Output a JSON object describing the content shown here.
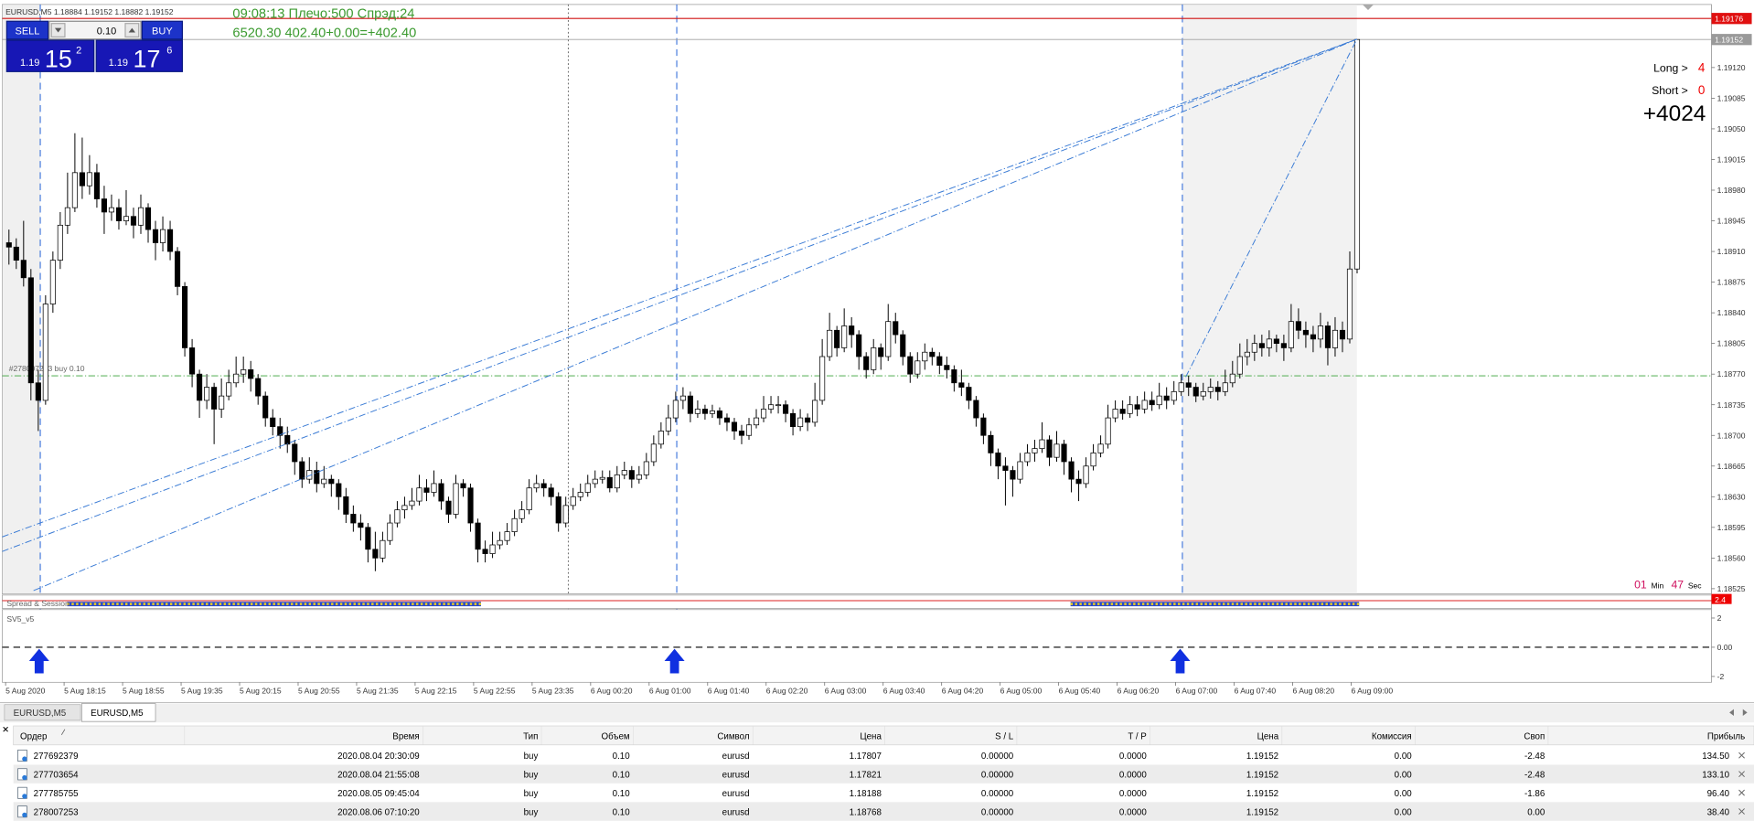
{
  "window": {
    "symbol_info": "EURUSD,M5  1.18884 1.19152 1.18882 1.19152"
  },
  "trade_panel": {
    "sell": "SELL",
    "buy": "BUY",
    "lot": "0.10",
    "bid": {
      "prefix": "1.19",
      "big": "15",
      "small": "2"
    },
    "ask": {
      "prefix": "1.19",
      "big": "17",
      "small": "6"
    }
  },
  "info": {
    "line1": "09:08:13 Плечо:500 Спрэд:24",
    "line2": "6520.30   402.40+0.00=+402.40"
  },
  "positions_panel": {
    "long_label": "Long >",
    "long": "4",
    "short_label": "Short >",
    "short": "0",
    "total": "+4024"
  },
  "timer": {
    "min": "01",
    "min_label": "Min",
    "sec": "47",
    "sec_label": "Sec"
  },
  "price_chart": {
    "ylim": [
      1.18519,
      1.19192
    ],
    "yticks": [
      {
        "value": 1.1912,
        "label": "1.19120"
      },
      1.19085,
      {
        "value": 1.1905,
        "label": "1.19050"
      },
      1.19015,
      {
        "value": 1.1898,
        "label": "1.18980"
      },
      1.18945,
      {
        "value": 1.1891,
        "label": "1.18910"
      },
      1.18875,
      {
        "value": 1.1884,
        "label": "1.18840"
      },
      1.18805,
      {
        "value": 1.1877,
        "label": "1.18770"
      },
      1.18735,
      {
        "value": 1.187,
        "label": "1.18700"
      },
      1.18665,
      {
        "value": 1.1863,
        "label": "1.18630"
      },
      1.18595,
      {
        "value": 1.1856,
        "label": "1.18560"
      },
      1.18525
    ],
    "bull_color": "#ffffff",
    "bear_color": "#000000",
    "levels": {
      "ask": 1.19176,
      "bid": 1.19152,
      "order": {
        "value": 1.18768,
        "label": "#278007253 buy 0.10"
      }
    },
    "candles": [
      [
        1.1892,
        1.18935,
        1.18895,
        1.18915
      ],
      [
        1.18915,
        1.18925,
        1.1889,
        1.189
      ],
      [
        1.189,
        1.18945,
        1.1887,
        1.1888
      ],
      [
        1.1888,
        1.1889,
        1.1874,
        1.1876
      ],
      [
        1.1876,
        1.18775,
        1.18705,
        1.1874
      ],
      [
        1.1874,
        1.1886,
        1.18735,
        1.1885
      ],
      [
        1.1885,
        1.1891,
        1.1884,
        1.189
      ],
      [
        1.189,
        1.18955,
        1.1889,
        1.1894
      ],
      [
        1.1894,
        1.19,
        1.1893,
        1.1896
      ],
      [
        1.1896,
        1.19045,
        1.18955,
        1.19
      ],
      [
        1.19,
        1.1904,
        1.1897,
        1.18985
      ],
      [
        1.18985,
        1.1902,
        1.18975,
        1.19
      ],
      [
        1.19,
        1.1901,
        1.1896,
        1.1897
      ],
      [
        1.1897,
        1.18985,
        1.1893,
        1.18955
      ],
      [
        1.18955,
        1.18975,
        1.18945,
        1.1896
      ],
      [
        1.1896,
        1.1897,
        1.18935,
        1.18945
      ],
      [
        1.18945,
        1.1898,
        1.1894,
        1.1895
      ],
      [
        1.1895,
        1.1896,
        1.18925,
        1.1894
      ],
      [
        1.1894,
        1.18975,
        1.1893,
        1.1896
      ],
      [
        1.1896,
        1.18965,
        1.1892,
        1.18935
      ],
      [
        1.18935,
        1.18945,
        1.189,
        1.1892
      ],
      [
        1.1892,
        1.1895,
        1.1891,
        1.18935
      ],
      [
        1.18935,
        1.18945,
        1.189,
        1.1891
      ],
      [
        1.1891,
        1.18915,
        1.1886,
        1.1887
      ],
      [
        1.1887,
        1.18875,
        1.1879,
        1.188
      ],
      [
        1.188,
        1.1881,
        1.18755,
        1.1877
      ],
      [
        1.1877,
        1.18775,
        1.1872,
        1.1874
      ],
      [
        1.1874,
        1.1877,
        1.1873,
        1.18755
      ],
      [
        1.18755,
        1.1876,
        1.1869,
        1.1873
      ],
      [
        1.1873,
        1.18765,
        1.1872,
        1.18745
      ],
      [
        1.18745,
        1.18775,
        1.1874,
        1.1876
      ],
      [
        1.1876,
        1.1879,
        1.18755,
        1.1877
      ],
      [
        1.1877,
        1.1879,
        1.1876,
        1.18775
      ],
      [
        1.18775,
        1.18785,
        1.1875,
        1.18765
      ],
      [
        1.18765,
        1.1877,
        1.18735,
        1.18745
      ],
      [
        1.18745,
        1.1875,
        1.1871,
        1.1872
      ],
      [
        1.1872,
        1.1873,
        1.187,
        1.1871
      ],
      [
        1.1871,
        1.1872,
        1.18685,
        1.187
      ],
      [
        1.187,
        1.1871,
        1.1868,
        1.1869
      ],
      [
        1.1869,
        1.18695,
        1.18655,
        1.1867
      ],
      [
        1.1867,
        1.18675,
        1.1864,
        1.1865
      ],
      [
        1.1865,
        1.18675,
        1.18645,
        1.1866
      ],
      [
        1.1866,
        1.1867,
        1.18635,
        1.18645
      ],
      [
        1.18645,
        1.18665,
        1.1864,
        1.1865
      ],
      [
        1.1865,
        1.18655,
        1.1863,
        1.18645
      ],
      [
        1.18645,
        1.1865,
        1.18615,
        1.1863
      ],
      [
        1.1863,
        1.1864,
        1.186,
        1.1861
      ],
      [
        1.1861,
        1.1862,
        1.1859,
        1.186
      ],
      [
        1.186,
        1.1861,
        1.1858,
        1.18595
      ],
      [
        1.18595,
        1.186,
        1.18555,
        1.1857
      ],
      [
        1.1857,
        1.1859,
        1.18545,
        1.1856
      ],
      [
        1.1856,
        1.1859,
        1.18555,
        1.1858
      ],
      [
        1.1858,
        1.1861,
        1.18575,
        1.186
      ],
      [
        1.186,
        1.18625,
        1.18595,
        1.18615
      ],
      [
        1.18615,
        1.1863,
        1.18605,
        1.1862
      ],
      [
        1.1862,
        1.1864,
        1.18615,
        1.18625
      ],
      [
        1.18625,
        1.18655,
        1.1862,
        1.1864
      ],
      [
        1.1864,
        1.1865,
        1.18625,
        1.18635
      ],
      [
        1.18635,
        1.1866,
        1.1863,
        1.18645
      ],
      [
        1.18645,
        1.1865,
        1.18615,
        1.18625
      ],
      [
        1.18625,
        1.1863,
        1.186,
        1.1861
      ],
      [
        1.1861,
        1.18655,
        1.18605,
        1.18645
      ],
      [
        1.18645,
        1.1865,
        1.1863,
        1.1864
      ],
      [
        1.1864,
        1.18645,
        1.1859,
        1.186
      ],
      [
        1.186,
        1.18605,
        1.18555,
        1.1857
      ],
      [
        1.1857,
        1.1858,
        1.18555,
        1.18565
      ],
      [
        1.18565,
        1.1859,
        1.1856,
        1.18575
      ],
      [
        1.18575,
        1.1859,
        1.1857,
        1.1858
      ],
      [
        1.1858,
        1.186,
        1.18575,
        1.1859
      ],
      [
        1.1859,
        1.18615,
        1.18585,
        1.18605
      ],
      [
        1.18605,
        1.18625,
        1.186,
        1.18615
      ],
      [
        1.18615,
        1.1865,
        1.1861,
        1.1864
      ],
      [
        1.1864,
        1.18655,
        1.18635,
        1.18645
      ],
      [
        1.18645,
        1.1865,
        1.1863,
        1.1864
      ],
      [
        1.1864,
        1.18645,
        1.1862,
        1.1863
      ],
      [
        1.1863,
        1.18635,
        1.1859,
        1.186
      ],
      [
        1.186,
        1.1863,
        1.18595,
        1.1862
      ],
      [
        1.1862,
        1.1864,
        1.18615,
        1.1863
      ],
      [
        1.1863,
        1.18645,
        1.18625,
        1.18635
      ],
      [
        1.18635,
        1.18655,
        1.1863,
        1.18645
      ],
      [
        1.18645,
        1.1866,
        1.1864,
        1.1865
      ],
      [
        1.1865,
        1.1866,
        1.18645,
        1.18652
      ],
      [
        1.18652,
        1.1866,
        1.18635,
        1.1864
      ],
      [
        1.1864,
        1.18665,
        1.18635,
        1.18655
      ],
      [
        1.18655,
        1.1867,
        1.1865,
        1.1866
      ],
      [
        1.1866,
        1.18665,
        1.1864,
        1.1865
      ],
      [
        1.1865,
        1.18665,
        1.18645,
        1.18655
      ],
      [
        1.18655,
        1.1868,
        1.1865,
        1.1867
      ],
      [
        1.1867,
        1.187,
        1.18665,
        1.1869
      ],
      [
        1.1869,
        1.18715,
        1.18685,
        1.18705
      ],
      [
        1.18705,
        1.18735,
        1.187,
        1.1872
      ],
      [
        1.1872,
        1.1875,
        1.18715,
        1.1874
      ],
      [
        1.1874,
        1.18755,
        1.1873,
        1.18745
      ],
      [
        1.18745,
        1.1875,
        1.18715,
        1.18725
      ],
      [
        1.18725,
        1.1874,
        1.1872,
        1.1873
      ],
      [
        1.1873,
        1.18735,
        1.18718,
        1.18725
      ],
      [
        1.18725,
        1.18735,
        1.1872,
        1.18728
      ],
      [
        1.18728,
        1.18732,
        1.18712,
        1.1872
      ],
      [
        1.1872,
        1.18725,
        1.18705,
        1.18715
      ],
      [
        1.18715,
        1.1872,
        1.18695,
        1.18705
      ],
      [
        1.18705,
        1.18712,
        1.1869,
        1.187
      ],
      [
        1.187,
        1.1872,
        1.18695,
        1.18712
      ],
      [
        1.18712,
        1.1873,
        1.18708,
        1.1872
      ],
      [
        1.1872,
        1.18745,
        1.18715,
        1.1873
      ],
      [
        1.1873,
        1.18745,
        1.18725,
        1.18735
      ],
      [
        1.18735,
        1.18745,
        1.18725,
        1.18735
      ],
      [
        1.18735,
        1.1874,
        1.18715,
        1.18725
      ],
      [
        1.18725,
        1.1873,
        1.187,
        1.1871
      ],
      [
        1.1871,
        1.1873,
        1.18705,
        1.1872
      ],
      [
        1.1872,
        1.18725,
        1.18705,
        1.18715
      ],
      [
        1.18715,
        1.1876,
        1.1871,
        1.1874
      ],
      [
        1.1874,
        1.1881,
        1.18735,
        1.1879
      ],
      [
        1.1879,
        1.1884,
        1.18785,
        1.1882
      ],
      [
        1.1882,
        1.18825,
        1.1879,
        1.188
      ],
      [
        1.188,
        1.18845,
        1.18795,
        1.18825
      ],
      [
        1.18825,
        1.18835,
        1.188,
        1.18815
      ],
      [
        1.18815,
        1.1882,
        1.18775,
        1.1879
      ],
      [
        1.1879,
        1.18795,
        1.18765,
        1.18775
      ],
      [
        1.18775,
        1.1881,
        1.1877,
        1.188
      ],
      [
        1.188,
        1.18805,
        1.18775,
        1.1879
      ],
      [
        1.1879,
        1.1885,
        1.18785,
        1.1883
      ],
      [
        1.1883,
        1.1884,
        1.18805,
        1.18815
      ],
      [
        1.18815,
        1.1882,
        1.1878,
        1.1879
      ],
      [
        1.1879,
        1.18795,
        1.1876,
        1.1877
      ],
      [
        1.1877,
        1.18795,
        1.18765,
        1.18785
      ],
      [
        1.18785,
        1.18805,
        1.18775,
        1.18795
      ],
      [
        1.18795,
        1.188,
        1.1878,
        1.1879
      ],
      [
        1.1879,
        1.18795,
        1.1877,
        1.1878
      ],
      [
        1.1878,
        1.1879,
        1.18765,
        1.18775
      ],
      [
        1.18775,
        1.1878,
        1.1875,
        1.1876
      ],
      [
        1.1876,
        1.18775,
        1.18745,
        1.18755
      ],
      [
        1.18755,
        1.1876,
        1.1873,
        1.1874
      ],
      [
        1.1874,
        1.18745,
        1.1871,
        1.1872
      ],
      [
        1.1872,
        1.18725,
        1.1869,
        1.187
      ],
      [
        1.187,
        1.18705,
        1.18665,
        1.1868
      ],
      [
        1.1868,
        1.18685,
        1.1865,
        1.18665
      ],
      [
        1.18665,
        1.18675,
        1.1862,
        1.1866
      ],
      [
        1.1866,
        1.18665,
        1.1863,
        1.1865
      ],
      [
        1.1865,
        1.1868,
        1.18645,
        1.1867
      ],
      [
        1.1867,
        1.1869,
        1.18665,
        1.1868
      ],
      [
        1.1868,
        1.18695,
        1.1867,
        1.18685
      ],
      [
        1.18685,
        1.18715,
        1.1868,
        1.18695
      ],
      [
        1.18695,
        1.187,
        1.18665,
        1.18675
      ],
      [
        1.18675,
        1.18705,
        1.1867,
        1.1869
      ],
      [
        1.1869,
        1.18695,
        1.18655,
        1.1867
      ],
      [
        1.1867,
        1.18675,
        1.18635,
        1.1865
      ],
      [
        1.1865,
        1.1866,
        1.18625,
        1.18645
      ],
      [
        1.18645,
        1.18675,
        1.1864,
        1.18665
      ],
      [
        1.18665,
        1.1869,
        1.1866,
        1.1868
      ],
      [
        1.1868,
        1.187,
        1.18675,
        1.1869
      ],
      [
        1.1869,
        1.18735,
        1.18685,
        1.1872
      ],
      [
        1.1872,
        1.1874,
        1.18715,
        1.1873
      ],
      [
        1.1873,
        1.1874,
        1.18718,
        1.18725
      ],
      [
        1.18725,
        1.18745,
        1.1872,
        1.18735
      ],
      [
        1.18735,
        1.18745,
        1.18722,
        1.1873
      ],
      [
        1.1873,
        1.1875,
        1.18725,
        1.1874
      ],
      [
        1.1874,
        1.1875,
        1.18728,
        1.18735
      ],
      [
        1.18735,
        1.1876,
        1.1873,
        1.18745
      ],
      [
        1.18745,
        1.18755,
        1.1873,
        1.1874
      ],
      [
        1.1874,
        1.18762,
        1.18735,
        1.1875
      ],
      [
        1.1875,
        1.1877,
        1.18745,
        1.1876
      ],
      [
        1.1876,
        1.18768,
        1.18745,
        1.18755
      ],
      [
        1.18755,
        1.1876,
        1.18738,
        1.18745
      ],
      [
        1.18745,
        1.1876,
        1.1874,
        1.1875
      ],
      [
        1.1875,
        1.18765,
        1.18742,
        1.18755
      ],
      [
        1.18755,
        1.18762,
        1.1874,
        1.1875
      ],
      [
        1.1875,
        1.18775,
        1.18745,
        1.1876
      ],
      [
        1.1876,
        1.18785,
        1.18755,
        1.1877
      ],
      [
        1.1877,
        1.18805,
        1.18765,
        1.1879
      ],
      [
        1.1879,
        1.1881,
        1.1878,
        1.18795
      ],
      [
        1.18795,
        1.18815,
        1.18785,
        1.18805
      ],
      [
        1.18805,
        1.18815,
        1.1879,
        1.188
      ],
      [
        1.188,
        1.1882,
        1.1879,
        1.1881
      ],
      [
        1.1881,
        1.18815,
        1.18795,
        1.18805
      ],
      [
        1.18805,
        1.18815,
        1.18785,
        1.188
      ],
      [
        1.188,
        1.1885,
        1.18795,
        1.1883
      ],
      [
        1.1883,
        1.18845,
        1.1881,
        1.1882
      ],
      [
        1.1882,
        1.1883,
        1.188,
        1.18815
      ],
      [
        1.18815,
        1.18825,
        1.18795,
        1.1881
      ],
      [
        1.1881,
        1.1884,
        1.188,
        1.18825
      ],
      [
        1.18825,
        1.1883,
        1.1878,
        1.188
      ],
      [
        1.188,
        1.18835,
        1.1879,
        1.1882
      ],
      [
        1.1882,
        1.1883,
        1.18795,
        1.1881
      ],
      [
        1.1881,
        1.1891,
        1.18805,
        1.1889
      ],
      [
        1.1889,
        1.19152,
        1.18885,
        1.19152
      ]
    ]
  },
  "spread_indicator": {
    "name": "Spread & Session",
    "value": "2.4"
  },
  "subwindow": {
    "name": "SV5_v5",
    "ylim": [
      -2.4,
      2.5
    ],
    "yticks": [
      2,
      {
        "value": 0,
        "label": "0.00"
      },
      -2
    ],
    "level": 0
  },
  "time_axis": [
    "5 Aug 2020",
    "5 Aug 18:15",
    "5 Aug 18:55",
    "5 Aug 19:35",
    "5 Aug 20:15",
    "5 Aug 20:55",
    "5 Aug 21:35",
    "5 Aug 22:15",
    "5 Aug 22:55",
    "5 Aug 23:35",
    "6 Aug 00:20",
    "6 Aug 01:00",
    "6 Aug 01:40",
    "6 Aug 02:20",
    "6 Aug 03:00",
    "6 Aug 03:40",
    "6 Aug 04:20",
    "6 Aug 05:00",
    "6 Aug 05:40",
    "6 Aug 06:20",
    "6 Aug 07:00",
    "6 Aug 07:40",
    "6 Aug 08:20",
    "6 Aug 09:00"
  ],
  "tabs": [
    "EURUSD,M5",
    "EURUSD,M5"
  ],
  "table": {
    "header": [
      "Ордер",
      "Время",
      "Тип",
      "Объем",
      "Символ",
      "Цена",
      "S / L",
      "T / P",
      "Цена",
      "Комиссия",
      "Своп",
      "Прибыль"
    ],
    "rows": [
      [
        "277692379",
        "2020.08.04 20:30:09",
        "buy",
        "0.10",
        "eurusd",
        "1.17807",
        "0.00000",
        "0.0000",
        "1.19152",
        "0.00",
        "-2.48",
        "134.50"
      ],
      [
        "277703654",
        "2020.08.04 21:55:08",
        "buy",
        "0.10",
        "eurusd",
        "1.17821",
        "0.00000",
        "0.0000",
        "1.19152",
        "0.00",
        "-2.48",
        "133.10"
      ],
      [
        "277785755",
        "2020.08.05 09:45:04",
        "buy",
        "0.10",
        "eurusd",
        "1.18188",
        "0.00000",
        "0.0000",
        "1.19152",
        "0.00",
        "-1.86",
        "96.40"
      ],
      [
        "278007253",
        "2020.08.06 07:10:20",
        "buy",
        "0.10",
        "eurusd",
        "1.18768",
        "0.00000",
        "0.0000",
        "1.19152",
        "0.00",
        "0.00",
        "38.40"
      ]
    ]
  }
}
